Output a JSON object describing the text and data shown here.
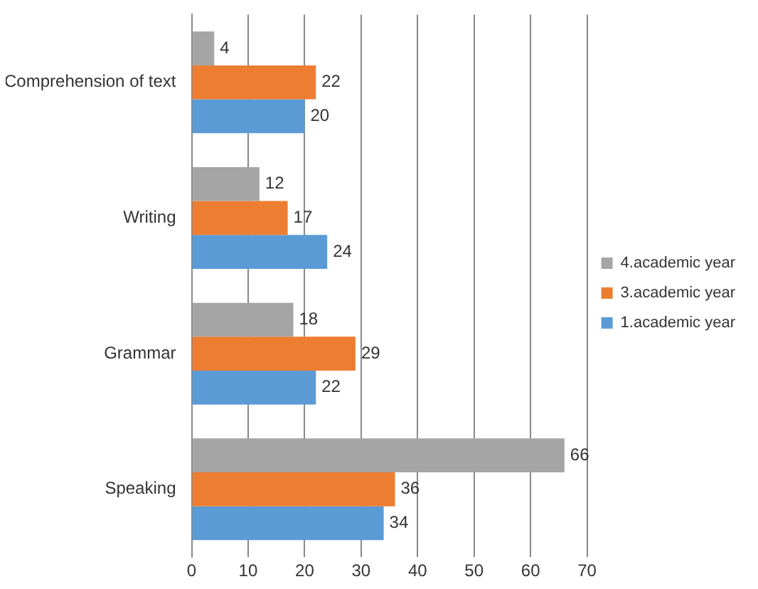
{
  "chart_data": {
    "type": "bar",
    "orientation": "horizontal",
    "categories": [
      "Comprehension of text",
      "Writing",
      "Grammar",
      "Speaking"
    ],
    "series": [
      {
        "name": "4.academic year",
        "color": "#a5a5a5",
        "values": [
          4,
          12,
          18,
          66
        ]
      },
      {
        "name": "3.academic year",
        "color": "#ed7d31",
        "values": [
          22,
          17,
          29,
          36
        ]
      },
      {
        "name": "1.academic year",
        "color": "#5b9bd5",
        "values": [
          20,
          24,
          22,
          34
        ]
      }
    ],
    "xlim": [
      0,
      70
    ],
    "xticks": [
      0,
      10,
      20,
      30,
      40,
      50,
      60,
      70
    ],
    "grid": "x",
    "legend": "right",
    "data_labels": true
  }
}
